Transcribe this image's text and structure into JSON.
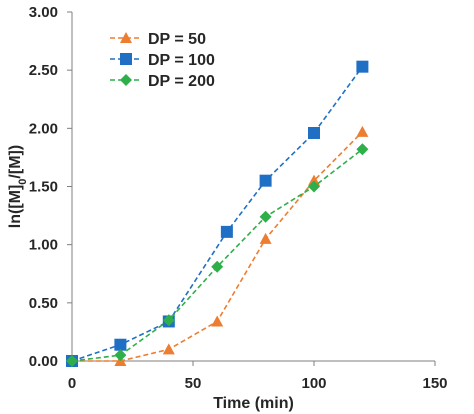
{
  "chart_data": {
    "type": "scatter",
    "xlabel": "Time (min)",
    "ylabel": "ln([M]o/[M])",
    "ylabel_parts": {
      "main": "ln([M]",
      "sub": "0",
      "rest": "/[M])"
    },
    "xlim": [
      0,
      150
    ],
    "ylim": [
      0,
      3
    ],
    "xticks": [
      0,
      50,
      100,
      150
    ],
    "yticks": [
      0,
      0.5,
      1,
      1.5,
      2,
      2.5,
      3
    ],
    "xtick_labels": [
      "0",
      "50",
      "100",
      "150"
    ],
    "ytick_labels": [
      "0.00",
      "0.50",
      "1.00",
      "1.50",
      "2.00",
      "2.50",
      "3.00"
    ],
    "grid": false,
    "legend_position": "top-left",
    "series": [
      {
        "name": "DP = 50",
        "color": "#ED7D31",
        "marker": "triangle",
        "x": [
          0,
          20,
          40,
          60,
          80,
          100,
          120
        ],
        "y": [
          0.0,
          0.0,
          0.1,
          0.34,
          1.05,
          1.55,
          1.97
        ]
      },
      {
        "name": "DP = 100",
        "color": "#1F6FC5",
        "marker": "square",
        "x": [
          0,
          20,
          40,
          64,
          80,
          100,
          120
        ],
        "y": [
          0.0,
          0.14,
          0.34,
          1.11,
          1.55,
          1.96,
          2.53
        ]
      },
      {
        "name": "DP = 200",
        "color": "#2EAF4A",
        "marker": "diamond",
        "x": [
          0,
          20,
          40,
          60,
          80,
          100,
          120
        ],
        "y": [
          0.0,
          0.05,
          0.35,
          0.81,
          1.24,
          1.5,
          1.82
        ]
      }
    ]
  }
}
